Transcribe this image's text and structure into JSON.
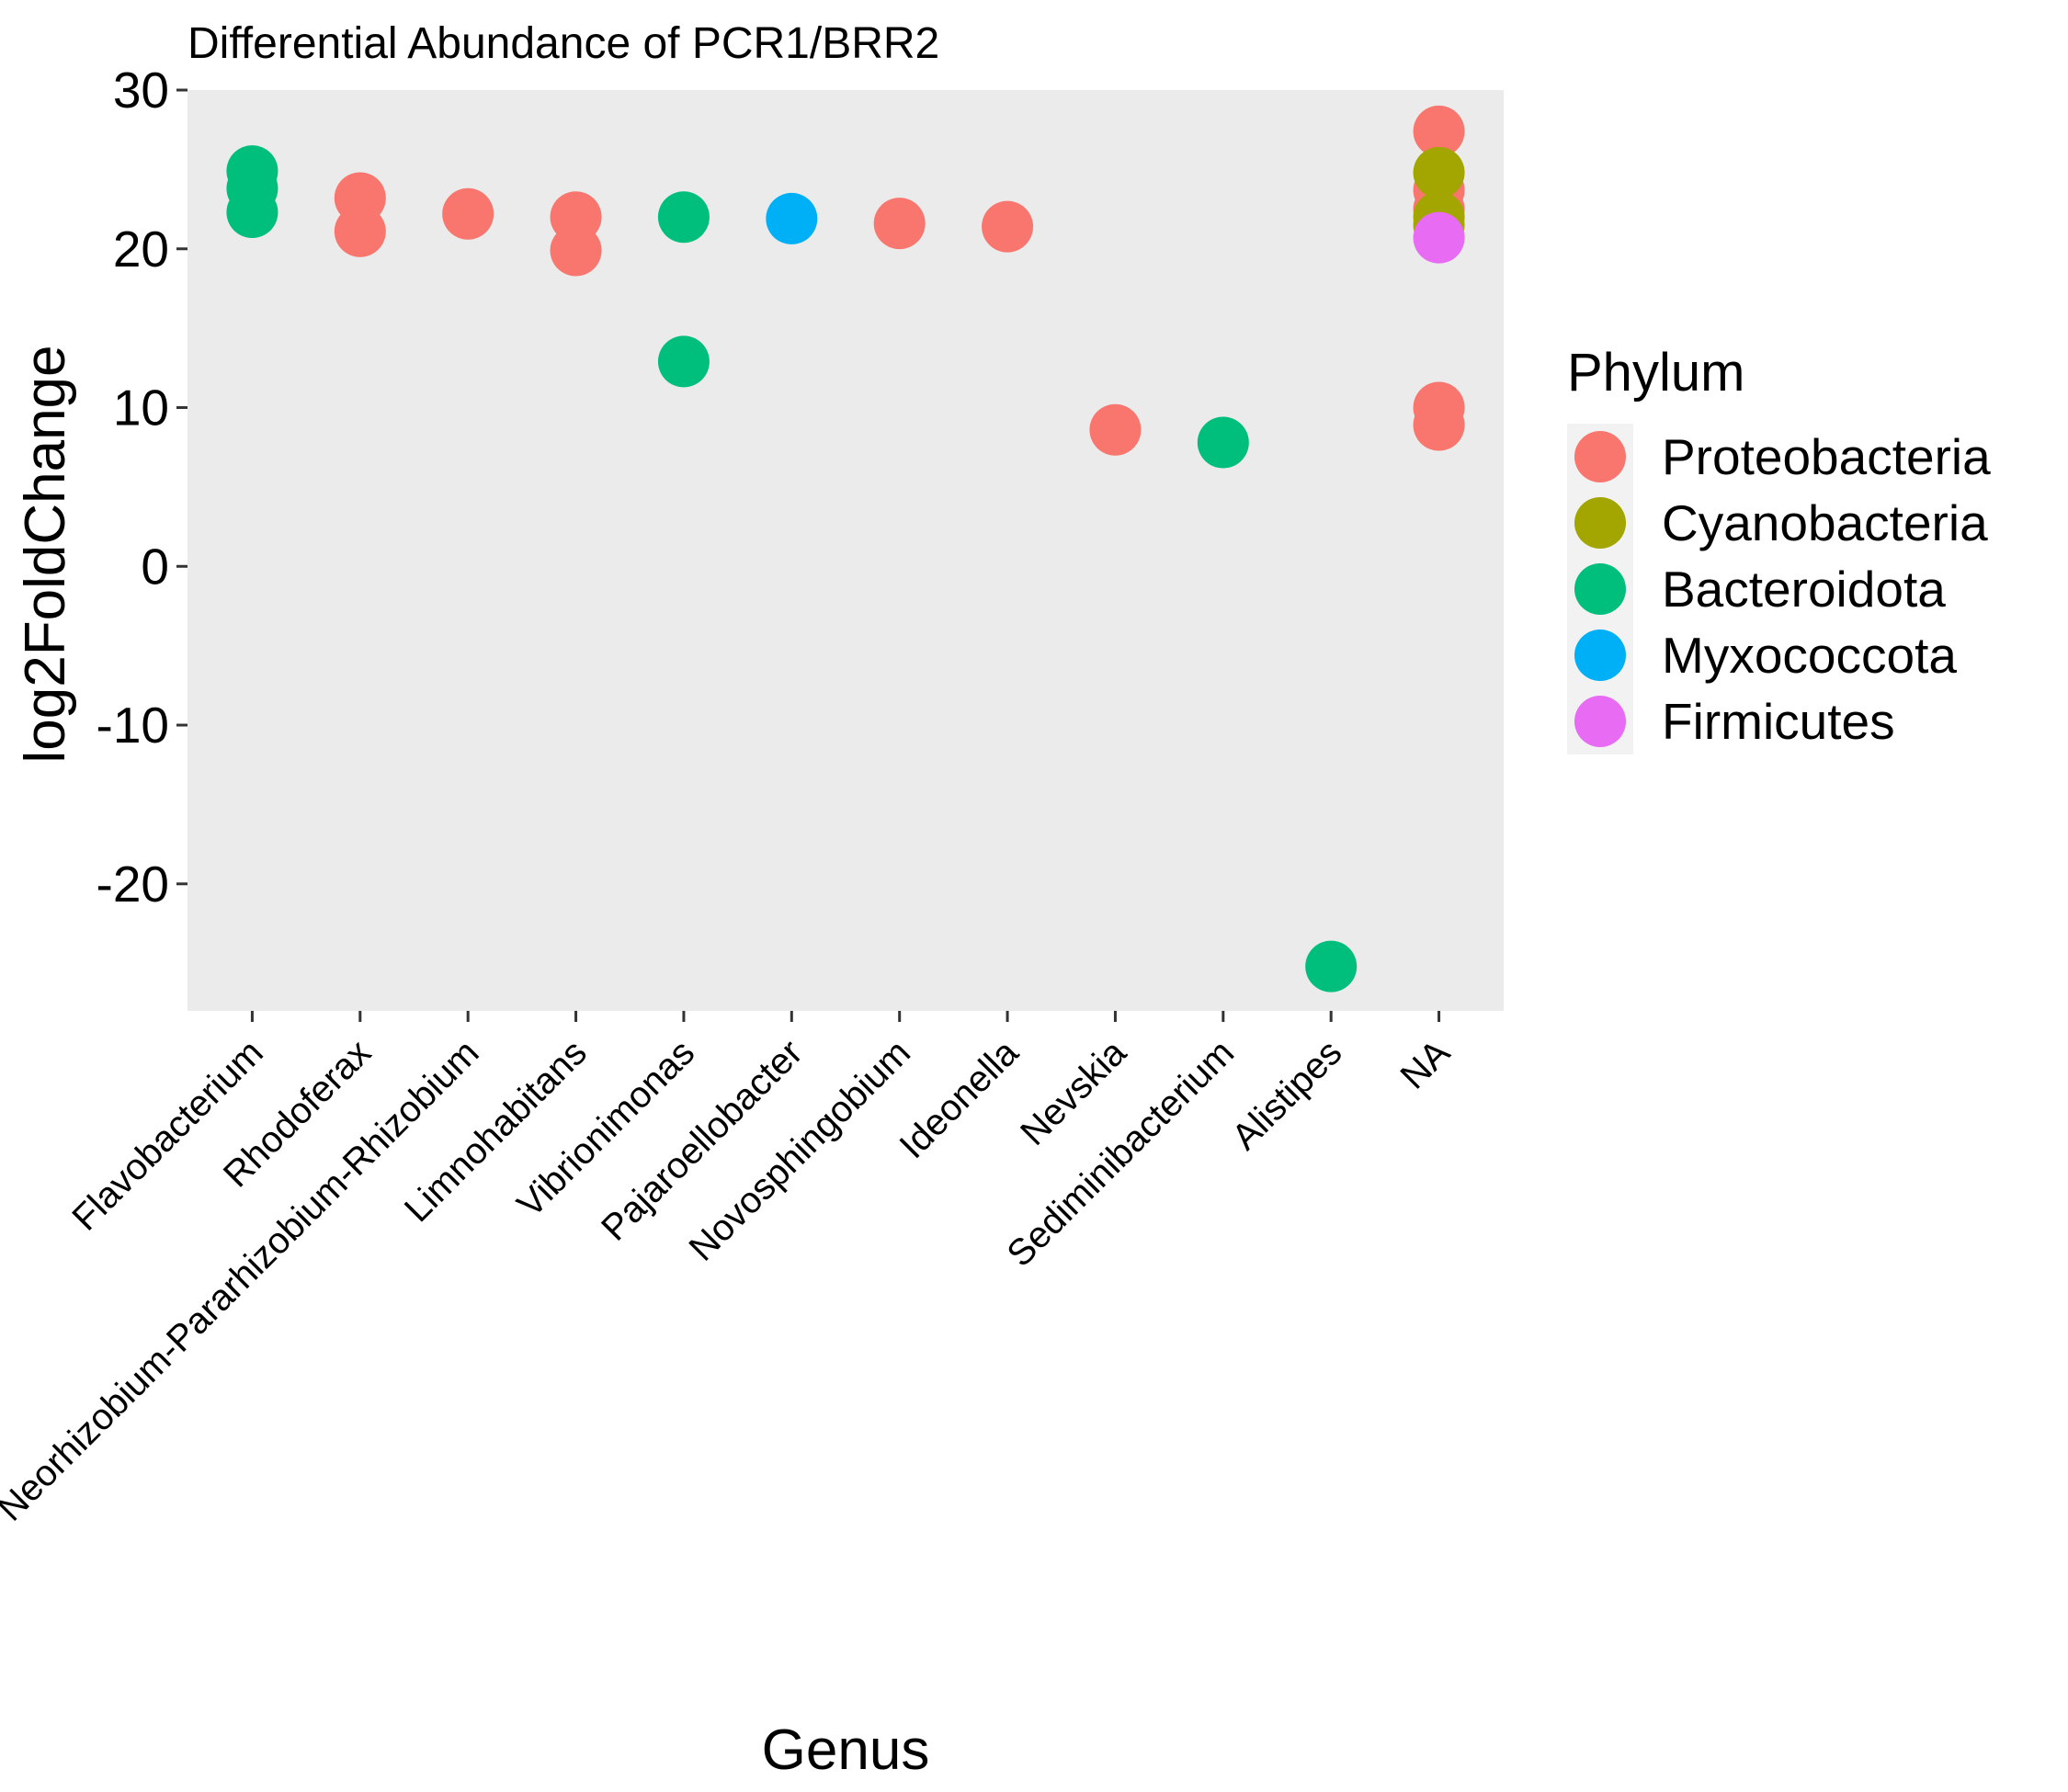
{
  "chart_data": {
    "type": "scatter",
    "title": "Differential Abundance of PCR1/BRR2",
    "xlabel": "Genus",
    "ylabel": "log2FoldChange",
    "categories": [
      "Flavobacterium",
      "Rhodoferax",
      "Neorhizobium-Pararhizobium-Rhizobium",
      "Limnohabitans",
      "Vibrionimonas",
      "Pajaroellobacter",
      "Novosphingobium",
      "Ideonella",
      "Nevskia",
      "Sediminibacterium",
      "Alistipes",
      "NA"
    ],
    "ylim": [
      -28,
      30
    ],
    "yticks": [
      30,
      20,
      10,
      0,
      -10,
      -20
    ],
    "ytick_labels": [
      "30",
      "20",
      "10",
      "0",
      "-10",
      "-20"
    ],
    "grid": false,
    "legend_position": "right",
    "legend_title": "Phylum",
    "series": [
      {
        "name": "Proteobacteria",
        "color": "#F8766D",
        "points": [
          {
            "x": "Rhodoferax",
            "y": 23.2
          },
          {
            "x": "Rhodoferax",
            "y": 21.1
          },
          {
            "x": "Neorhizobium-Pararhizobium-Rhizobium",
            "y": 22.2
          },
          {
            "x": "Limnohabitans",
            "y": 22.0
          },
          {
            "x": "Limnohabitans",
            "y": 19.9
          },
          {
            "x": "Novosphingobium",
            "y": 21.6
          },
          {
            "x": "Ideonella",
            "y": 21.4
          },
          {
            "x": "Nevskia",
            "y": 8.6
          },
          {
            "x": "NA",
            "y": 27.4
          },
          {
            "x": "NA",
            "y": 23.7
          },
          {
            "x": "NA",
            "y": 22.5
          },
          {
            "x": "NA",
            "y": 10.0
          },
          {
            "x": "NA",
            "y": 8.9
          }
        ]
      },
      {
        "name": "Cyanobacteria",
        "color": "#A3A500",
        "points": [
          {
            "x": "NA",
            "y": 24.8
          },
          {
            "x": "NA",
            "y": 21.5
          },
          {
            "x": "NA",
            "y": 22.0
          }
        ]
      },
      {
        "name": "Bacteroidota",
        "color": "#00BF7D",
        "points": [
          {
            "x": "Flavobacterium",
            "y": 24.9
          },
          {
            "x": "Flavobacterium",
            "y": 23.8
          },
          {
            "x": "Flavobacterium",
            "y": 22.3
          },
          {
            "x": "Vibrionimonas",
            "y": 22.0
          },
          {
            "x": "Vibrionimonas",
            "y": 12.9
          },
          {
            "x": "Sediminibacterium",
            "y": 7.8
          },
          {
            "x": "Alistipes",
            "y": -25.2
          }
        ]
      },
      {
        "name": "Myxococcota",
        "color": "#00B0F6",
        "points": [
          {
            "x": "Pajaroellobacter",
            "y": 21.9
          }
        ]
      },
      {
        "name": "Firmicutes",
        "color": "#E76BF3",
        "points": [
          {
            "x": "NA",
            "y": 20.7
          }
        ]
      }
    ]
  }
}
